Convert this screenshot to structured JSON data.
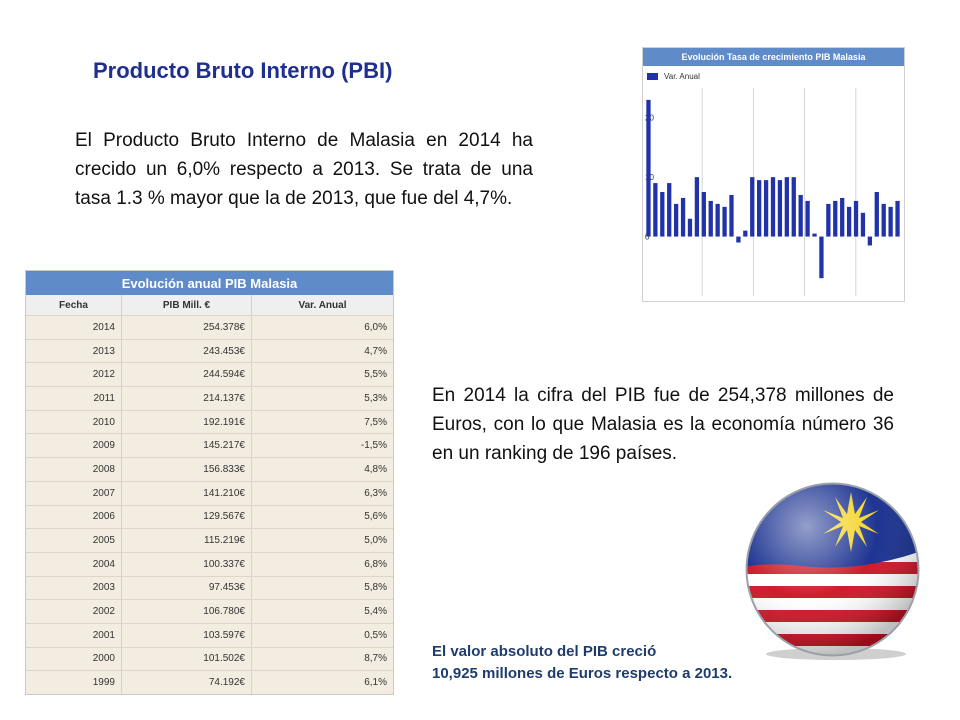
{
  "title": "Producto Bruto Interno (PBI)",
  "paragraph1": "El Producto Bruto Interno de Malasia en 2014 ha crecido un 6,0% respecto a 2013. Se trata de una tasa 1.3 % mayor que la de 2013, que fue del 4,7%.",
  "paragraph2": "En 2014 la cifra del PIB fue de 254,378 millones de Euros, con lo que Malasia es la economía número 36 en un ranking de 196 países.",
  "note": {
    "line1": "El valor absoluto del PIB creció",
    "line2": "10,925 millones de Euros respecto a 2013."
  },
  "table": {
    "title": "Evolución anual PIB Malasia",
    "headers": [
      "Fecha",
      "PIB Mill. €",
      "Var. Anual"
    ],
    "rows": [
      [
        "2014",
        "254.378€",
        "6,0%"
      ],
      [
        "2013",
        "243.453€",
        "4,7%"
      ],
      [
        "2012",
        "244.594€",
        "5,5%"
      ],
      [
        "2011",
        "214.137€",
        "5,3%"
      ],
      [
        "2010",
        "192.191€",
        "7,5%"
      ],
      [
        "2009",
        "145.217€",
        "-1,5%"
      ],
      [
        "2008",
        "156.833€",
        "4,8%"
      ],
      [
        "2007",
        "141.210€",
        "6,3%"
      ],
      [
        "2006",
        "129.567€",
        "5,6%"
      ],
      [
        "2005",
        "115.219€",
        "5,0%"
      ],
      [
        "2004",
        "100.337€",
        "6,8%"
      ],
      [
        "2003",
        "97.453€",
        "5,8%"
      ],
      [
        "2002",
        "106.780€",
        "5,4%"
      ],
      [
        "2001",
        "103.597€",
        "0,5%"
      ],
      [
        "2000",
        "101.502€",
        "8,7%"
      ],
      [
        "1999",
        "74.192€",
        "6,1%"
      ]
    ]
  },
  "chart_data": {
    "type": "bar",
    "title": "Evolución Tasa de crecimiento PIB Malasia",
    "legend": "Var. Anual",
    "y_ticks": [
      "20",
      "10",
      "0"
    ],
    "ylim": [
      -10,
      25
    ],
    "bar_color": "#2233aa",
    "values": [
      23,
      9,
      7.5,
      9,
      5.5,
      6.5,
      3,
      10,
      7.5,
      6,
      5.5,
      5,
      7,
      -1,
      1,
      10,
      9.5,
      9.5,
      10,
      9.5,
      10,
      10,
      7,
      6,
      0.5,
      -7,
      5.5,
      6,
      6.5,
      5,
      6,
      4,
      -1.5,
      7.5,
      5.5,
      5,
      6
    ]
  }
}
